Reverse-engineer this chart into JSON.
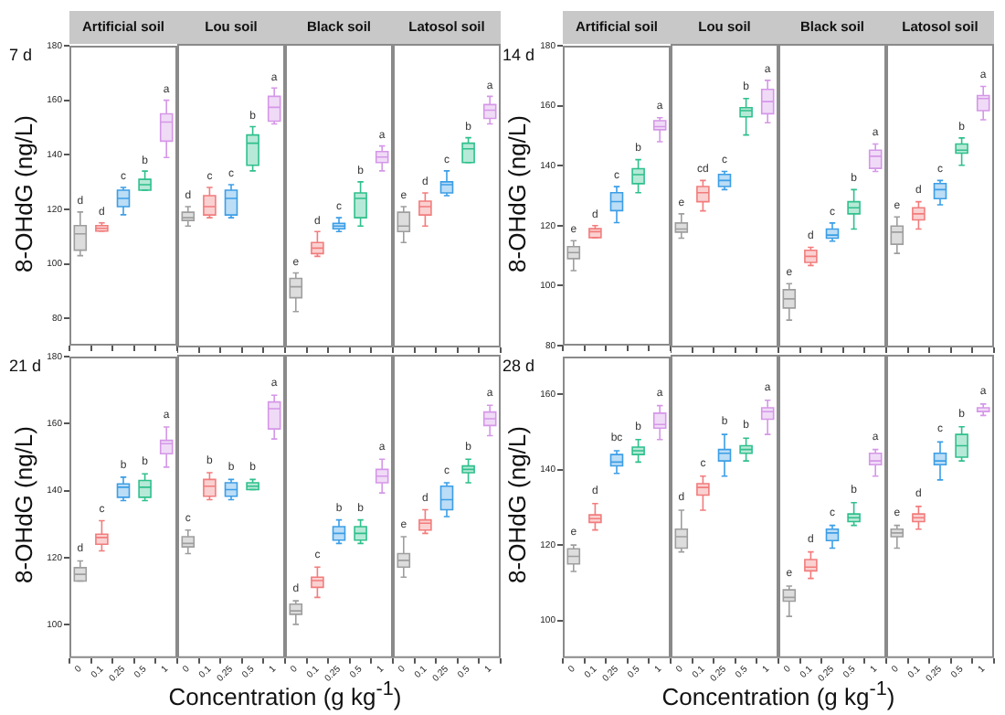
{
  "chart_data": [
    {
      "type": "box",
      "title": "Artificial soil",
      "ylabel": "8-OHdG (ng/L)",
      "tick_labels": "y",
      "ylim": [
        70,
        180
      ],
      "yticks": [
        80,
        100,
        120,
        140,
        160,
        180
      ],
      "categories": [
        "0",
        "0.1",
        "0.25",
        "0.5",
        "1"
      ],
      "colors": [
        "#9e9e9e",
        "#f27c7c",
        "#3c9ee6",
        "#2fc08c",
        "#d597e8"
      ],
      "boxes": [
        {
          "low": 103,
          "q1": 105,
          "median": 111,
          "q3": 114,
          "high": 119
        },
        {
          "low": 112,
          "q1": 112,
          "median": 113,
          "q3": 114,
          "high": 115
        },
        {
          "low": 118,
          "q1": 121,
          "median": 124,
          "q3": 127,
          "high": 128
        },
        {
          "low": 127,
          "q1": 127,
          "median": 129,
          "q3": 131,
          "high": 134
        },
        {
          "low": 139,
          "q1": 145,
          "median": 152,
          "q3": 155,
          "high": 160
        }
      ],
      "annotations": [
        "7 d",
        {
          "text": "d",
          "x": "0",
          "y": 121
        },
        {
          "text": "d",
          "x": "0.1",
          "y": 117
        },
        {
          "text": "c",
          "x": "0.25",
          "y": 130
        },
        {
          "text": "b",
          "x": "0.5",
          "y": 136
        },
        {
          "text": "a",
          "x": "1",
          "y": 162
        }
      ]
    },
    {
      "type": "box",
      "title": "Lou soil",
      "tick_labels": false,
      "ylim": [
        70,
        180
      ],
      "yticks": [
        80,
        100,
        120,
        140,
        160,
        180
      ],
      "categories": [
        "0",
        "0.1",
        "0.25",
        "0.5",
        "1"
      ],
      "colors": [
        "#9e9e9e",
        "#f27c7c",
        "#3c9ee6",
        "#2fc08c",
        "#d597e8"
      ],
      "boxes": [
        {
          "low": 114,
          "q1": 116,
          "median": 117,
          "q3": 119,
          "high": 121
        },
        {
          "low": 117,
          "q1": 118,
          "median": 121,
          "q3": 125,
          "high": 128
        },
        {
          "low": 117,
          "q1": 118,
          "median": 124,
          "q3": 127,
          "high": 129
        },
        {
          "low": 134,
          "q1": 136,
          "median": 144,
          "q3": 147,
          "high": 150
        },
        {
          "low": 151,
          "q1": 152,
          "median": 157,
          "q3": 161,
          "high": 164
        }
      ],
      "annotations": [
        {
          "text": "d",
          "x": "0",
          "y": 123
        },
        {
          "text": "c",
          "x": "0.1",
          "y": 130
        },
        {
          "text": "c",
          "x": "0.25",
          "y": 131
        },
        {
          "text": "b",
          "x": "0.5",
          "y": 152
        },
        {
          "text": "a",
          "x": "1",
          "y": 166
        }
      ]
    },
    {
      "type": "box",
      "title": "Black soil",
      "tick_labels": false,
      "ylim": [
        70,
        180
      ],
      "yticks": [
        80,
        100,
        120,
        140,
        160,
        180
      ],
      "categories": [
        "0",
        "0.1",
        "0.25",
        "0.5",
        "1"
      ],
      "colors": [
        "#9e9e9e",
        "#f27c7c",
        "#3c9ee6",
        "#2fc08c",
        "#d597e8"
      ],
      "boxes": [
        {
          "low": 83,
          "q1": 88,
          "median": 92,
          "q3": 95,
          "high": 97
        },
        {
          "low": 103,
          "q1": 104,
          "median": 106,
          "q3": 108,
          "high": 112
        },
        {
          "low": 112,
          "q1": 113,
          "median": 114,
          "q3": 115,
          "high": 117
        },
        {
          "low": 114,
          "q1": 117,
          "median": 124,
          "q3": 126,
          "high": 130
        },
        {
          "low": 134,
          "q1": 137,
          "median": 139,
          "q3": 141,
          "high": 143
        }
      ],
      "annotations": [
        {
          "text": "e",
          "x": "0",
          "y": 99
        },
        {
          "text": "d",
          "x": "0.1",
          "y": 114
        },
        {
          "text": "c",
          "x": "0.25",
          "y": 119
        },
        {
          "text": "b",
          "x": "0.5",
          "y": 132
        },
        {
          "text": "a",
          "x": "1",
          "y": 145
        }
      ]
    },
    {
      "type": "box",
      "title": "Latosol soil",
      "tick_labels": false,
      "ylim": [
        70,
        180
      ],
      "yticks": [
        80,
        100,
        120,
        140,
        160,
        180
      ],
      "categories": [
        "0",
        "0.1",
        "0.25",
        "0.5",
        "1"
      ],
      "colors": [
        "#9e9e9e",
        "#f27c7c",
        "#3c9ee6",
        "#2fc08c",
        "#d597e8"
      ],
      "boxes": [
        {
          "low": 108,
          "q1": 112,
          "median": 114,
          "q3": 119,
          "high": 121
        },
        {
          "low": 114,
          "q1": 118,
          "median": 121,
          "q3": 123,
          "high": 126
        },
        {
          "low": 125,
          "q1": 126,
          "median": 129,
          "q3": 130,
          "high": 134
        },
        {
          "low": 137,
          "q1": 137,
          "median": 142,
          "q3": 144,
          "high": 146
        },
        {
          "low": 151,
          "q1": 153,
          "median": 156,
          "q3": 158,
          "high": 161
        }
      ],
      "annotations": [
        {
          "text": "e",
          "x": "0",
          "y": 123
        },
        {
          "text": "d",
          "x": "0.1",
          "y": 128
        },
        {
          "text": "c",
          "x": "0.25",
          "y": 136
        },
        {
          "text": "b",
          "x": "0.5",
          "y": 148
        },
        {
          "text": "a",
          "x": "1",
          "y": 163
        }
      ]
    },
    {
      "type": "box",
      "title": "Artificial soil",
      "ylabel": "8-OHdG (ng/L)",
      "tick_labels": "y",
      "ylim": [
        80,
        180
      ],
      "yticks": [
        80,
        100,
        120,
        140,
        160,
        180
      ],
      "categories": [
        "0",
        "0.1",
        "0.25",
        "0.5",
        "1"
      ],
      "colors": [
        "#9e9e9e",
        "#f27c7c",
        "#3c9ee6",
        "#2fc08c",
        "#d597e8"
      ],
      "boxes": [
        {
          "low": 105,
          "q1": 109,
          "median": 111,
          "q3": 113,
          "high": 115
        },
        {
          "low": 116,
          "q1": 116,
          "median": 118,
          "q3": 119,
          "high": 120
        },
        {
          "low": 121,
          "q1": 125,
          "median": 128,
          "q3": 131,
          "high": 133
        },
        {
          "low": 131,
          "q1": 134,
          "median": 137,
          "q3": 139,
          "high": 142
        },
        {
          "low": 148,
          "q1": 152,
          "median": 153,
          "q3": 155,
          "high": 156
        }
      ],
      "annotations": [
        "14 d",
        {
          "text": "e",
          "x": "0",
          "y": 117
        },
        {
          "text": "d",
          "x": "0.1",
          "y": 122
        },
        {
          "text": "c",
          "x": "0.25",
          "y": 135
        },
        {
          "text": "b",
          "x": "0.5",
          "y": 144
        },
        {
          "text": "a",
          "x": "1",
          "y": 158
        }
      ]
    },
    {
      "type": "box",
      "title": "Lou soil",
      "tick_labels": false,
      "ylim": [
        80,
        180
      ],
      "yticks": [
        80,
        100,
        120,
        140,
        160,
        180
      ],
      "categories": [
        "0",
        "0.1",
        "0.25",
        "0.5",
        "1"
      ],
      "colors": [
        "#9e9e9e",
        "#f27c7c",
        "#3c9ee6",
        "#2fc08c",
        "#d597e8"
      ],
      "boxes": [
        {
          "low": 116,
          "q1": 118,
          "median": 119,
          "q3": 121,
          "high": 124
        },
        {
          "low": 125,
          "q1": 128,
          "median": 131,
          "q3": 133,
          "high": 135
        },
        {
          "low": 132,
          "q1": 133,
          "median": 135,
          "q3": 137,
          "high": 138
        },
        {
          "low": 150,
          "q1": 156,
          "median": 158,
          "q3": 159,
          "high": 162
        },
        {
          "low": 154,
          "q1": 157,
          "median": 161,
          "q3": 165,
          "high": 168
        }
      ],
      "annotations": [
        {
          "text": "e",
          "x": "0",
          "y": 126
        },
        {
          "text": "cd",
          "x": "0.1",
          "y": 137
        },
        {
          "text": "c",
          "x": "0.25",
          "y": 140
        },
        {
          "text": "b",
          "x": "0.5",
          "y": 164
        },
        {
          "text": "a",
          "x": "1",
          "y": 170
        }
      ]
    },
    {
      "type": "box",
      "title": "Black soil",
      "tick_labels": false,
      "ylim": [
        80,
        180
      ],
      "yticks": [
        80,
        100,
        120,
        140,
        160,
        180
      ],
      "categories": [
        "0",
        "0.1",
        "0.25",
        "0.5",
        "1"
      ],
      "colors": [
        "#9e9e9e",
        "#f27c7c",
        "#3c9ee6",
        "#2fc08c",
        "#d597e8"
      ],
      "boxes": [
        {
          "low": 89,
          "q1": 93,
          "median": 96,
          "q3": 99,
          "high": 101
        },
        {
          "low": 107,
          "q1": 108,
          "median": 110,
          "q3": 112,
          "high": 113
        },
        {
          "low": 115,
          "q1": 116,
          "median": 117,
          "q3": 119,
          "high": 121
        },
        {
          "low": 119,
          "q1": 124,
          "median": 126,
          "q3": 128,
          "high": 132
        },
        {
          "low": 138,
          "q1": 139,
          "median": 143,
          "q3": 145,
          "high": 147
        }
      ],
      "annotations": [
        {
          "text": "e",
          "x": "0",
          "y": 103
        },
        {
          "text": "d",
          "x": "0.1",
          "y": 115
        },
        {
          "text": "c",
          "x": "0.25",
          "y": 123
        },
        {
          "text": "b",
          "x": "0.5",
          "y": 134
        },
        {
          "text": "a",
          "x": "1",
          "y": 149
        }
      ]
    },
    {
      "type": "box",
      "title": "Latosol soil",
      "tick_labels": false,
      "ylim": [
        80,
        180
      ],
      "yticks": [
        80,
        100,
        120,
        140,
        160,
        180
      ],
      "categories": [
        "0",
        "0.1",
        "0.25",
        "0.5",
        "1"
      ],
      "colors": [
        "#9e9e9e",
        "#f27c7c",
        "#3c9ee6",
        "#2fc08c",
        "#d597e8"
      ],
      "boxes": [
        {
          "low": 111,
          "q1": 114,
          "median": 118,
          "q3": 120,
          "high": 123
        },
        {
          "low": 119,
          "q1": 122,
          "median": 124,
          "q3": 126,
          "high": 128
        },
        {
          "low": 127,
          "q1": 129,
          "median": 132,
          "q3": 134,
          "high": 135
        },
        {
          "low": 140,
          "q1": 144,
          "median": 145,
          "q3": 147,
          "high": 149
        },
        {
          "low": 155,
          "q1": 158,
          "median": 162,
          "q3": 163,
          "high": 166
        }
      ],
      "annotations": [
        {
          "text": "e",
          "x": "0",
          "y": 125
        },
        {
          "text": "d",
          "x": "0.1",
          "y": 130
        },
        {
          "text": "c",
          "x": "0.25",
          "y": 137
        },
        {
          "text": "b",
          "x": "0.5",
          "y": 151
        },
        {
          "text": "a",
          "x": "1",
          "y": 168
        }
      ]
    },
    {
      "type": "box",
      "ylabel": "8-OHdG (ng/L)",
      "xlabel": "Concentration (g kg$^{-1}$)",
      "ylim": [
        90,
        180
      ],
      "yticks": [
        100,
        120,
        140,
        160,
        180
      ],
      "categories": [
        "0",
        "0.1",
        "0.25",
        "0.5",
        "1"
      ],
      "colors": [
        "#9e9e9e",
        "#f27c7c",
        "#3c9ee6",
        "#2fc08c",
        "#d597e8"
      ],
      "boxes": [
        {
          "low": 113,
          "q1": 113,
          "median": 115,
          "q3": 117,
          "high": 119
        },
        {
          "low": 122,
          "q1": 124,
          "median": 126,
          "q3": 127,
          "high": 131
        },
        {
          "low": 137,
          "q1": 138,
          "median": 141,
          "q3": 142,
          "high": 144
        },
        {
          "low": 137,
          "q1": 138,
          "median": 141,
          "q3": 143,
          "high": 145
        },
        {
          "low": 147,
          "q1": 151,
          "median": 154,
          "q3": 155,
          "high": 159
        }
      ],
      "annotations": [
        "21 d",
        {
          "text": "d",
          "x": "0",
          "y": 121
        },
        {
          "text": "c",
          "x": "0.1",
          "y": 133
        },
        {
          "text": "b",
          "x": "0.25",
          "y": 146
        },
        {
          "text": "b",
          "x": "0.5",
          "y": 147
        },
        {
          "text": "a",
          "x": "1",
          "y": 161
        }
      ]
    },
    {
      "type": "box",
      "tick_labels": "x",
      "ylim": [
        90,
        180
      ],
      "yticks": [
        100,
        120,
        140,
        160,
        180
      ],
      "categories": [
        "0",
        "0.1",
        "0.25",
        "0.5",
        "1"
      ],
      "colors": [
        "#9e9e9e",
        "#f27c7c",
        "#3c9ee6",
        "#2fc08c",
        "#d597e8"
      ],
      "boxes": [
        {
          "low": 121,
          "q1": 123,
          "median": 124,
          "q3": 126,
          "high": 128
        },
        {
          "low": 137,
          "q1": 138,
          "median": 141,
          "q3": 143,
          "high": 145
        },
        {
          "low": 137,
          "q1": 138,
          "median": 140,
          "q3": 142,
          "high": 143
        },
        {
          "low": 140,
          "q1": 140,
          "median": 141,
          "q3": 142,
          "high": 143
        },
        {
          "low": 155,
          "q1": 158,
          "median": 164,
          "q3": 166,
          "high": 168
        }
      ],
      "annotations": [
        {
          "text": "c",
          "x": "0",
          "y": 130
        },
        {
          "text": "b",
          "x": "0.1",
          "y": 147
        },
        {
          "text": "b",
          "x": "0.25",
          "y": 145
        },
        {
          "text": "b",
          "x": "0.5",
          "y": 145
        },
        {
          "text": "a",
          "x": "1",
          "y": 170
        }
      ]
    },
    {
      "type": "box",
      "tick_labels": "x",
      "ylim": [
        90,
        180
      ],
      "yticks": [
        100,
        120,
        140,
        160,
        180
      ],
      "categories": [
        "0",
        "0.1",
        "0.25",
        "0.5",
        "1"
      ],
      "colors": [
        "#9e9e9e",
        "#f27c7c",
        "#3c9ee6",
        "#2fc08c",
        "#d597e8"
      ],
      "boxes": [
        {
          "low": 100,
          "q1": 103,
          "median": 104,
          "q3": 106,
          "high": 107
        },
        {
          "low": 108,
          "q1": 111,
          "median": 113,
          "q3": 114,
          "high": 117
        },
        {
          "low": 124,
          "q1": 125,
          "median": 127,
          "q3": 129,
          "high": 131
        },
        {
          "low": 124,
          "q1": 125,
          "median": 127,
          "q3": 129,
          "high": 131
        },
        {
          "low": 139,
          "q1": 142,
          "median": 144,
          "q3": 146,
          "high": 149
        }
      ],
      "annotations": [
        {
          "text": "d",
          "x": "0",
          "y": 109
        },
        {
          "text": "c",
          "x": "0.1",
          "y": 119
        },
        {
          "text": "b",
          "x": "0.25",
          "y": 133
        },
        {
          "text": "b",
          "x": "0.5",
          "y": 133
        },
        {
          "text": "a",
          "x": "1",
          "y": 151
        }
      ]
    },
    {
      "type": "box",
      "tick_labels": "x",
      "ylim": [
        90,
        180
      ],
      "yticks": [
        100,
        120,
        140,
        160,
        180
      ],
      "categories": [
        "0",
        "0.1",
        "0.25",
        "0.5",
        "1"
      ],
      "colors": [
        "#9e9e9e",
        "#f27c7c",
        "#3c9ee6",
        "#2fc08c",
        "#d597e8"
      ],
      "boxes": [
        {
          "low": 114,
          "q1": 117,
          "median": 119,
          "q3": 121,
          "high": 126
        },
        {
          "low": 127,
          "q1": 128,
          "median": 130,
          "q3": 131,
          "high": 134
        },
        {
          "low": 132,
          "q1": 134,
          "median": 137,
          "q3": 141,
          "high": 142
        },
        {
          "low": 142,
          "q1": 145,
          "median": 146,
          "q3": 147,
          "high": 149
        },
        {
          "low": 156,
          "q1": 159,
          "median": 161,
          "q3": 163,
          "high": 165
        }
      ],
      "annotations": [
        {
          "text": "e",
          "x": "0",
          "y": 128
        },
        {
          "text": "d",
          "x": "0.1",
          "y": 136
        },
        {
          "text": "c",
          "x": "0.25",
          "y": 144
        },
        {
          "text": "b",
          "x": "0.5",
          "y": 151
        },
        {
          "text": "a",
          "x": "1",
          "y": 167
        }
      ]
    },
    {
      "type": "box",
      "ylabel": "8-OHdG (ng/L)",
      "xlabel": "Concentration (g kg$^{-1}$)",
      "ylim": [
        90,
        170
      ],
      "yticks": [
        100,
        120,
        140,
        160
      ],
      "categories": [
        "0",
        "0.1",
        "0.25",
        "0.5",
        "1"
      ],
      "colors": [
        "#9e9e9e",
        "#f27c7c",
        "#3c9ee6",
        "#2fc08c",
        "#d597e8"
      ],
      "boxes": [
        {
          "low": 113,
          "q1": 115,
          "median": 117,
          "q3": 119,
          "high": 120
        },
        {
          "low": 124,
          "q1": 126,
          "median": 127,
          "q3": 128,
          "high": 131
        },
        {
          "low": 139,
          "q1": 141,
          "median": 142,
          "q3": 144,
          "high": 145
        },
        {
          "low": 142,
          "q1": 144,
          "median": 145,
          "q3": 146,
          "high": 148
        },
        {
          "low": 148,
          "q1": 151,
          "median": 152,
          "q3": 155,
          "high": 157
        }
      ],
      "annotations": [
        "28 d",
        {
          "text": "e",
          "x": "0",
          "y": 122
        },
        {
          "text": "d",
          "x": "0.1",
          "y": 133
        },
        {
          "text": "bc",
          "x": "0.25",
          "y": 147
        },
        {
          "text": "b",
          "x": "0.5",
          "y": 150
        },
        {
          "text": "a",
          "x": "1",
          "y": 159
        }
      ]
    },
    {
      "type": "box",
      "tick_labels": "x",
      "ylim": [
        90,
        170
      ],
      "yticks": [
        100,
        120,
        140,
        160
      ],
      "categories": [
        "0",
        "0.1",
        "0.25",
        "0.5",
        "1"
      ],
      "colors": [
        "#9e9e9e",
        "#f27c7c",
        "#3c9ee6",
        "#2fc08c",
        "#d597e8"
      ],
      "boxes": [
        {
          "low": 118,
          "q1": 119,
          "median": 122,
          "q3": 124,
          "high": 129
        },
        {
          "low": 129,
          "q1": 133,
          "median": 135,
          "q3": 136,
          "high": 138
        },
        {
          "low": 138,
          "q1": 142,
          "median": 144,
          "q3": 145,
          "high": 149
        },
        {
          "low": 142,
          "q1": 144,
          "median": 145,
          "q3": 146,
          "high": 148
        },
        {
          "low": 149,
          "q1": 153,
          "median": 155,
          "q3": 156,
          "high": 158
        }
      ],
      "annotations": [
        {
          "text": "d",
          "x": "0",
          "y": 131
        },
        {
          "text": "c",
          "x": "0.1",
          "y": 140
        },
        {
          "text": "b",
          "x": "0.25",
          "y": 151
        },
        {
          "text": "b",
          "x": "0.5",
          "y": 150
        },
        {
          "text": "a",
          "x": "1",
          "y": 160
        }
      ]
    },
    {
      "type": "box",
      "tick_labels": "x",
      "ylim": [
        90,
        170
      ],
      "yticks": [
        100,
        120,
        140,
        160
      ],
      "categories": [
        "0",
        "0.1",
        "0.25",
        "0.5",
        "1"
      ],
      "colors": [
        "#9e9e9e",
        "#f27c7c",
        "#3c9ee6",
        "#2fc08c",
        "#d597e8"
      ],
      "boxes": [
        {
          "low": 101,
          "q1": 105,
          "median": 106,
          "q3": 108,
          "high": 109
        },
        {
          "low": 111,
          "q1": 113,
          "median": 114,
          "q3": 116,
          "high": 118
        },
        {
          "low": 119,
          "q1": 121,
          "median": 123,
          "q3": 124,
          "high": 125
        },
        {
          "low": 125,
          "q1": 126,
          "median": 127,
          "q3": 128,
          "high": 131
        },
        {
          "low": 138,
          "q1": 141,
          "median": 142,
          "q3": 144,
          "high": 145
        }
      ],
      "annotations": [
        {
          "text": "e",
          "x": "0",
          "y": 111
        },
        {
          "text": "d",
          "x": "0.1",
          "y": 120
        },
        {
          "text": "c",
          "x": "0.25",
          "y": 127
        },
        {
          "text": "b",
          "x": "0.5",
          "y": 133
        },
        {
          "text": "a",
          "x": "1",
          "y": 147
        }
      ]
    },
    {
      "type": "box",
      "tick_labels": "x",
      "ylim": [
        90,
        170
      ],
      "yticks": [
        100,
        120,
        140,
        160
      ],
      "categories": [
        "0",
        "0.1",
        "0.25",
        "0.5",
        "1"
      ],
      "colors": [
        "#9e9e9e",
        "#f27c7c",
        "#3c9ee6",
        "#2fc08c",
        "#d597e8"
      ],
      "boxes": [
        {
          "low": 119,
          "q1": 122,
          "median": 123,
          "q3": 124,
          "high": 125
        },
        {
          "low": 124,
          "q1": 126,
          "median": 127,
          "q3": 128,
          "high": 130
        },
        {
          "low": 137,
          "q1": 141,
          "median": 142,
          "q3": 144,
          "high": 147
        },
        {
          "low": 142,
          "q1": 143,
          "median": 146,
          "q3": 149,
          "high": 151
        },
        {
          "low": 154,
          "q1": 155,
          "median": 155,
          "q3": 156,
          "high": 157
        }
      ],
      "annotations": [
        {
          "text": "e",
          "x": "0",
          "y": 127
        },
        {
          "text": "d",
          "x": "0.1",
          "y": 132
        },
        {
          "text": "c",
          "x": "0.25",
          "y": 149
        },
        {
          "text": "b",
          "x": "0.5",
          "y": 153
        },
        {
          "text": "a",
          "x": "1",
          "y": 159
        }
      ]
    }
  ]
}
